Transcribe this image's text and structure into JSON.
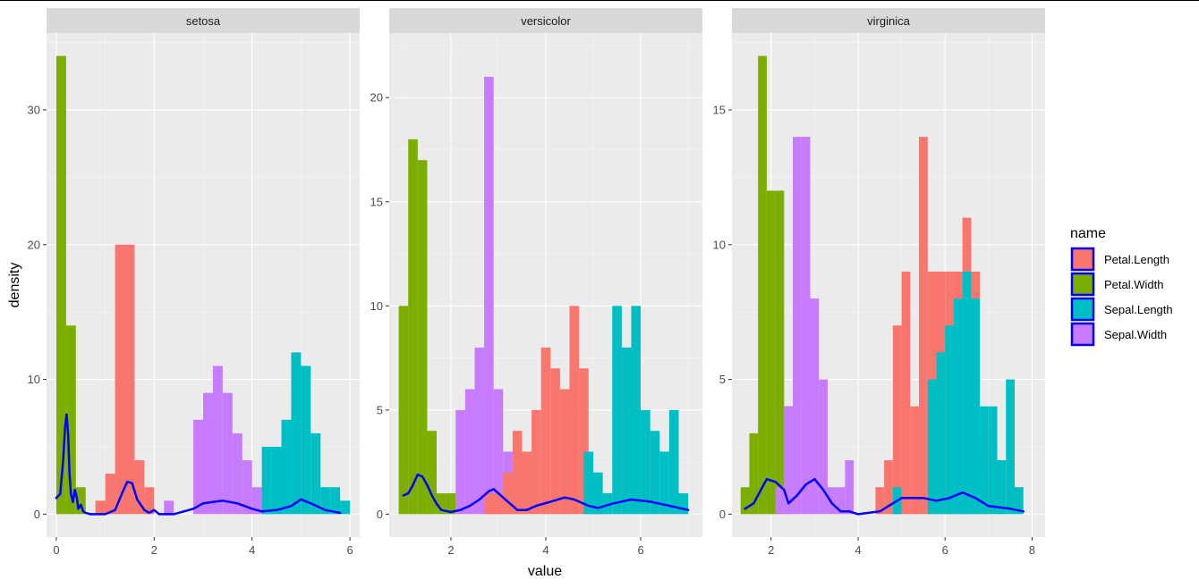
{
  "chart_data": {
    "type": "histogram",
    "chart_variant": "faceted histogram with density line overlay",
    "xlabel": "value",
    "ylabel": "density",
    "legend": {
      "title": "name",
      "position": "right",
      "entries": [
        "Petal.Length",
        "Petal.Width",
        "Sepal.Length",
        "Sepal.Width"
      ]
    },
    "density_line_color": "#0000ff",
    "binwidth": 0.2,
    "colors": {
      "Petal.Length": "#F8766D",
      "Petal.Width": "#7CAE00",
      "Sepal.Length": "#00BFC4",
      "Sepal.Width": "#C77CFF"
    },
    "grid": true,
    "facets": [
      {
        "label": "setosa",
        "xlim": [
          -0.2,
          6.2
        ],
        "ylim": [
          -1.7,
          35.7
        ],
        "x_ticks": [
          0,
          2,
          4,
          6
        ],
        "y_ticks": [
          0,
          10,
          20,
          30
        ],
        "series": [
          {
            "name": "Petal.Width",
            "bins": [
              [
                0.1,
                34
              ],
              [
                0.3,
                14
              ],
              [
                0.5,
                2
              ]
            ]
          },
          {
            "name": "Petal.Length",
            "bins": [
              [
                0.9,
                1
              ],
              [
                1.1,
                3
              ],
              [
                1.3,
                20
              ],
              [
                1.5,
                20
              ],
              [
                1.7,
                4
              ],
              [
                1.9,
                2
              ]
            ]
          },
          {
            "name": "Sepal.Width",
            "bins": [
              [
                2.3,
                1
              ],
              [
                2.9,
                7
              ],
              [
                3.1,
                9
              ],
              [
                3.3,
                11
              ],
              [
                3.5,
                9
              ],
              [
                3.7,
                6
              ],
              [
                3.9,
                4
              ],
              [
                4.1,
                2
              ],
              [
                4.3,
                1
              ]
            ]
          },
          {
            "name": "Sepal.Length",
            "bins": [
              [
                4.3,
                5
              ],
              [
                4.5,
                5
              ],
              [
                4.7,
                7
              ],
              [
                4.9,
                12
              ],
              [
                5.1,
                11
              ],
              [
                5.3,
                6
              ],
              [
                5.5,
                2
              ],
              [
                5.7,
                2
              ],
              [
                5.9,
                1
              ]
            ]
          }
        ],
        "density": [
          [
            0.0,
            1.2
          ],
          [
            0.08,
            1.5
          ],
          [
            0.14,
            4
          ],
          [
            0.18,
            6.5
          ],
          [
            0.21,
            7.4
          ],
          [
            0.24,
            6
          ],
          [
            0.27,
            3
          ],
          [
            0.3,
            1.5
          ],
          [
            0.34,
            0.9
          ],
          [
            0.38,
            1.8
          ],
          [
            0.42,
            1.2
          ],
          [
            0.45,
            0.4
          ],
          [
            0.5,
            0.7
          ],
          [
            0.55,
            0.2
          ],
          [
            0.6,
            0.1
          ],
          [
            0.7,
            0
          ],
          [
            1.0,
            0
          ],
          [
            1.2,
            0.3
          ],
          [
            1.35,
            1.6
          ],
          [
            1.45,
            2.4
          ],
          [
            1.55,
            2.3
          ],
          [
            1.65,
            1.1
          ],
          [
            1.8,
            0.3
          ],
          [
            1.9,
            0.1
          ],
          [
            2.0,
            0.3
          ],
          [
            2.1,
            0
          ],
          [
            2.4,
            0
          ],
          [
            2.8,
            0.4
          ],
          [
            3.0,
            0.8
          ],
          [
            3.4,
            1.0
          ],
          [
            3.7,
            0.8
          ],
          [
            4.0,
            0.4
          ],
          [
            4.2,
            0.2
          ],
          [
            4.5,
            0.3
          ],
          [
            4.8,
            0.6
          ],
          [
            5.0,
            1.1
          ],
          [
            5.2,
            0.8
          ],
          [
            5.5,
            0.3
          ],
          [
            5.8,
            0.1
          ]
        ]
      },
      {
        "label": "versicolor",
        "xlim": [
          0.7,
          7.3
        ],
        "ylim": [
          -1.1,
          23.1
        ],
        "x_ticks": [
          2,
          4,
          6
        ],
        "y_ticks": [
          0,
          5,
          10,
          15,
          20
        ],
        "series": [
          {
            "name": "Petal.Width",
            "bins": [
              [
                1.0,
                10
              ],
              [
                1.2,
                18
              ],
              [
                1.4,
                17
              ],
              [
                1.6,
                4
              ],
              [
                1.8,
                1
              ],
              [
                2.0,
                1
              ]
            ]
          },
          {
            "name": "Sepal.Width",
            "bins": [
              [
                2.2,
                5
              ],
              [
                2.4,
                6
              ],
              [
                2.6,
                8
              ],
              [
                2.8,
                21
              ],
              [
                3.0,
                6
              ],
              [
                3.2,
                3
              ],
              [
                3.4,
                1
              ]
            ]
          },
          {
            "name": "Petal.Length",
            "bins": [
              [
                2.8,
                1
              ],
              [
                3.0,
                1
              ],
              [
                3.2,
                2
              ],
              [
                3.4,
                4
              ],
              [
                3.6,
                3
              ],
              [
                3.8,
                5
              ],
              [
                4.0,
                8
              ],
              [
                4.2,
                7
              ],
              [
                4.4,
                6
              ],
              [
                4.6,
                10
              ],
              [
                4.8,
                7
              ],
              [
                5.0,
                2
              ],
              [
                5.2,
                1
              ]
            ]
          },
          {
            "name": "Sepal.Length",
            "bins": [
              [
                4.9,
                3
              ],
              [
                5.1,
                2
              ],
              [
                5.3,
                1
              ],
              [
                5.5,
                10
              ],
              [
                5.7,
                8
              ],
              [
                5.9,
                10
              ],
              [
                6.1,
                5
              ],
              [
                6.3,
                4
              ],
              [
                6.5,
                3
              ],
              [
                6.7,
                5
              ],
              [
                6.9,
                1
              ]
            ]
          }
        ],
        "density": [
          [
            1.0,
            0.9
          ],
          [
            1.1,
            1.0
          ],
          [
            1.2,
            1.4
          ],
          [
            1.3,
            1.9
          ],
          [
            1.4,
            1.8
          ],
          [
            1.5,
            1.4
          ],
          [
            1.6,
            0.9
          ],
          [
            1.7,
            0.5
          ],
          [
            1.8,
            0.2
          ],
          [
            2.0,
            0.1
          ],
          [
            2.2,
            0.2
          ],
          [
            2.4,
            0.4
          ],
          [
            2.6,
            0.7
          ],
          [
            2.8,
            1.1
          ],
          [
            2.9,
            1.2
          ],
          [
            3.0,
            1.0
          ],
          [
            3.2,
            0.6
          ],
          [
            3.4,
            0.2
          ],
          [
            3.6,
            0.2
          ],
          [
            3.8,
            0.4
          ],
          [
            4.1,
            0.6
          ],
          [
            4.4,
            0.8
          ],
          [
            4.6,
            0.7
          ],
          [
            4.9,
            0.4
          ],
          [
            5.1,
            0.3
          ],
          [
            5.4,
            0.5
          ],
          [
            5.8,
            0.7
          ],
          [
            6.2,
            0.6
          ],
          [
            6.6,
            0.4
          ],
          [
            7.0,
            0.2
          ]
        ]
      },
      {
        "label": "virginica",
        "xlim": [
          1.1,
          8.3
        ],
        "ylim": [
          -0.85,
          17.85
        ],
        "x_ticks": [
          2,
          4,
          6,
          8
        ],
        "y_ticks": [
          0,
          5,
          10,
          15
        ],
        "series": [
          {
            "name": "Petal.Width",
            "bins": [
              [
                1.4,
                1
              ],
              [
                1.6,
                3
              ],
              [
                1.8,
                17
              ],
              [
                2.0,
                12
              ],
              [
                2.2,
                12
              ],
              [
                2.4,
                4
              ]
            ]
          },
          {
            "name": "Sepal.Width",
            "bins": [
              [
                2.2,
                1
              ],
              [
                2.4,
                4
              ],
              [
                2.6,
                14
              ],
              [
                2.8,
                14
              ],
              [
                3.0,
                8
              ],
              [
                3.2,
                5
              ],
              [
                3.4,
                1
              ],
              [
                3.6,
                1
              ],
              [
                3.8,
                2
              ]
            ]
          },
          {
            "name": "Petal.Length",
            "bins": [
              [
                4.5,
                1
              ],
              [
                4.7,
                2
              ],
              [
                4.9,
                7
              ],
              [
                5.1,
                9
              ],
              [
                5.3,
                4
              ],
              [
                5.5,
                14
              ],
              [
                5.7,
                9
              ],
              [
                5.9,
                9
              ],
              [
                6.1,
                9
              ],
              [
                6.3,
                9
              ],
              [
                6.5,
                11
              ],
              [
                6.7,
                9
              ],
              [
                6.9,
                3
              ]
            ]
          },
          {
            "name": "Sepal.Length",
            "bins": [
              [
                4.9,
                1
              ],
              [
                5.7,
                5
              ],
              [
                5.9,
                6
              ],
              [
                6.1,
                7
              ],
              [
                6.3,
                8
              ],
              [
                6.5,
                9
              ],
              [
                6.7,
                8
              ],
              [
                6.9,
                4
              ],
              [
                7.1,
                4
              ],
              [
                7.3,
                2
              ],
              [
                7.5,
                5
              ],
              [
                7.7,
                1
              ]
            ]
          }
        ],
        "density": [
          [
            1.4,
            0.2
          ],
          [
            1.6,
            0.4
          ],
          [
            1.8,
            1.0
          ],
          [
            1.9,
            1.3
          ],
          [
            2.1,
            1.2
          ],
          [
            2.3,
            0.9
          ],
          [
            2.4,
            0.4
          ],
          [
            2.6,
            0.7
          ],
          [
            2.8,
            1.1
          ],
          [
            3.0,
            1.3
          ],
          [
            3.2,
            0.9
          ],
          [
            3.4,
            0.4
          ],
          [
            3.6,
            0.1
          ],
          [
            3.8,
            0.1
          ],
          [
            4.0,
            0.0
          ],
          [
            4.5,
            0.1
          ],
          [
            4.8,
            0.4
          ],
          [
            5.0,
            0.6
          ],
          [
            5.5,
            0.6
          ],
          [
            5.8,
            0.5
          ],
          [
            6.1,
            0.6
          ],
          [
            6.4,
            0.8
          ],
          [
            6.7,
            0.6
          ],
          [
            7.0,
            0.3
          ],
          [
            7.5,
            0.2
          ],
          [
            7.8,
            0.1
          ]
        ]
      }
    ]
  }
}
